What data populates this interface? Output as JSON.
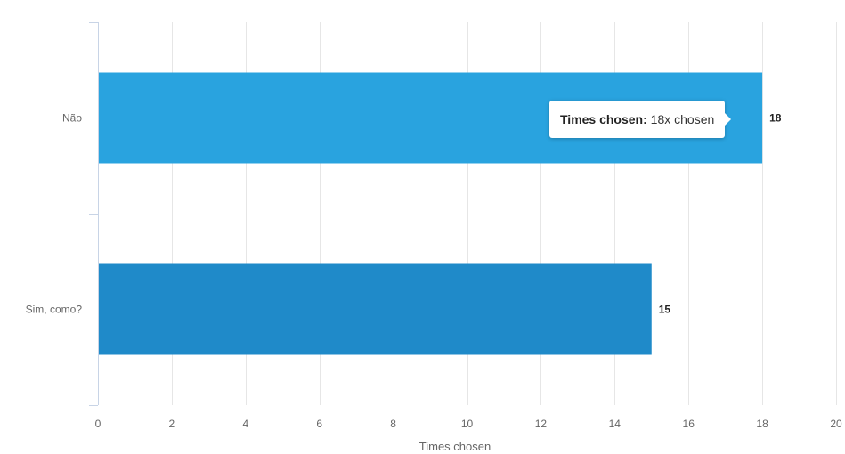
{
  "chart_data": {
    "type": "bar",
    "orientation": "horizontal",
    "categories": [
      "Não",
      "Sim, como?"
    ],
    "values": [
      18,
      15
    ],
    "xlabel": "Times chosen",
    "xlim": [
      0,
      20
    ],
    "xticks": [
      0,
      2,
      4,
      6,
      8,
      10,
      12,
      14,
      16,
      18,
      20
    ],
    "grid": true,
    "colors": [
      "#29a3df",
      "#1f8ac9"
    ]
  },
  "tooltip": {
    "key": "Times chosen:",
    "value": "18x chosen"
  }
}
